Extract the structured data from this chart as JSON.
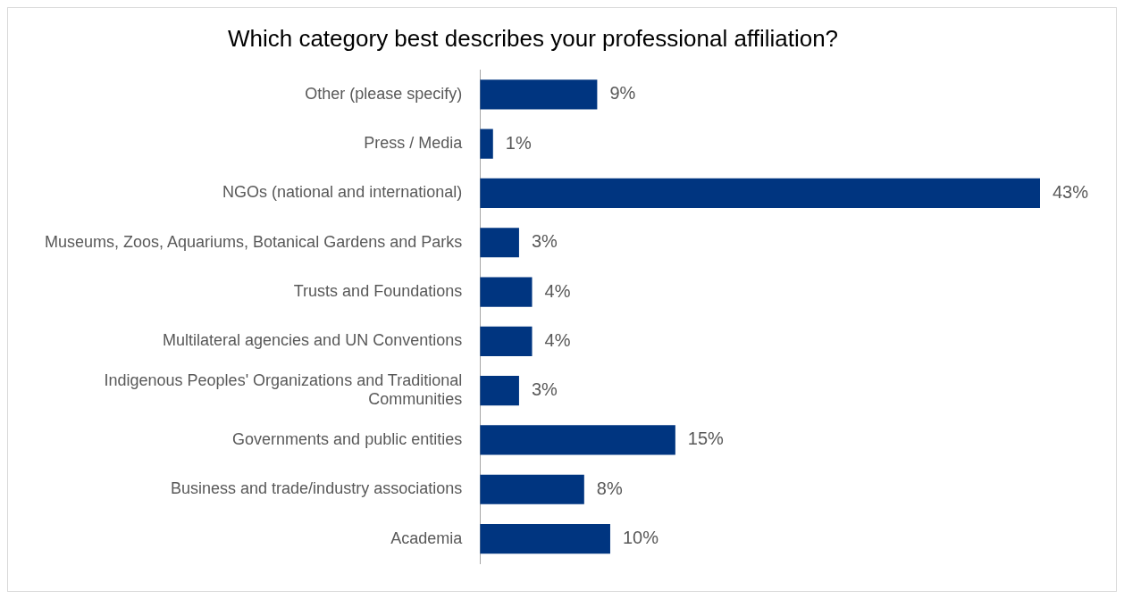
{
  "chart_data": {
    "type": "bar",
    "orientation": "horizontal",
    "title": "Which category best describes your professional affiliation?",
    "categories": [
      "Other (please specify)",
      "Press / Media",
      "NGOs (national and international)",
      "Museums, Zoos, Aquariums, Botanical Gardens and Parks",
      "Trusts and Foundations",
      "Multilateral agencies and UN Conventions",
      "Indigenous Peoples' Organizations and Traditional Communities",
      "Governments and public entities",
      "Business and trade/industry associations",
      "Academia"
    ],
    "values": [
      9,
      1,
      43,
      3,
      4,
      4,
      3,
      15,
      8,
      10
    ],
    "value_labels": [
      "9%",
      "1%",
      "43%",
      "3%",
      "4%",
      "4%",
      "3%",
      "15%",
      "8%",
      "10%"
    ],
    "color": "#003580",
    "legend": false
  }
}
